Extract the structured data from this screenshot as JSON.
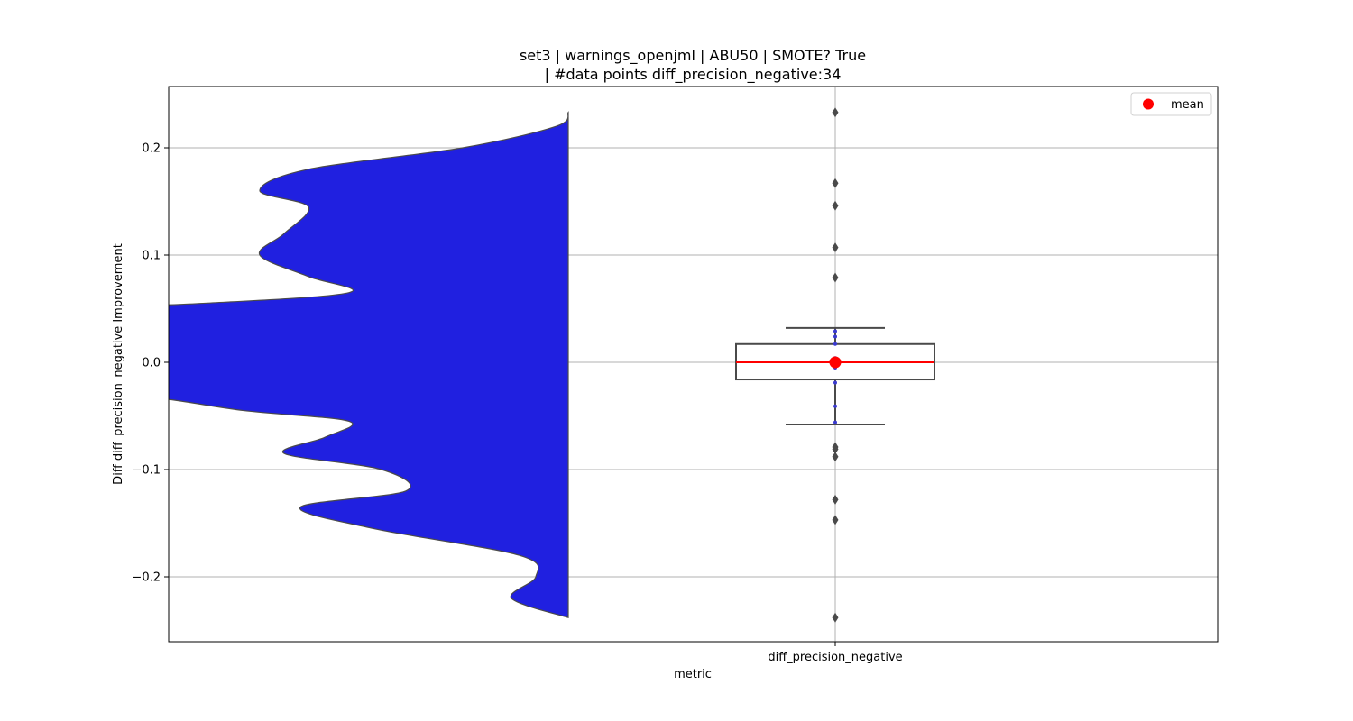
{
  "chart_data": {
    "type": "violin+box",
    "title_line1": "set3 | warnings_openjml | ABU50 | SMOTE? True",
    "title_line2": "| #data points diff_precision_negative:34",
    "xlabel": "metric",
    "ylabel": "Diff diff_precision_negative Improvement",
    "categories": [
      "diff_precision_negative"
    ],
    "ylim": [
      -0.26,
      0.26
    ],
    "yticks": [
      -0.2,
      -0.1,
      0.0,
      0.1,
      0.2
    ],
    "ytick_labels": [
      "−0.2",
      "−0.1",
      "0.0",
      "0.1",
      "0.2"
    ],
    "grid": true,
    "legend": {
      "label": "mean",
      "placement": "top-right"
    },
    "colors": {
      "violin": "#2020e0",
      "violin_edge": "#4a4a4a",
      "box_edge": "#4a4a4a",
      "median": "#ff0000",
      "mean": "#ff0000",
      "grid": "#b0b0b0"
    },
    "box": {
      "whisker_low": -0.058,
      "q1": -0.016,
      "median": 0.0,
      "q3": 0.017,
      "whisker_high": 0.032,
      "mean": 0.0
    },
    "outliers": [
      0.233,
      0.167,
      0.146,
      0.107,
      0.079,
      -0.079,
      -0.081,
      -0.088,
      -0.128,
      -0.147,
      -0.238
    ],
    "inliers": [
      0.029,
      0.024,
      0.017,
      0.004,
      0.001,
      0.0,
      0.0,
      -0.001,
      -0.003,
      -0.005,
      -0.019,
      -0.041,
      -0.056
    ],
    "violin_density": {
      "y": [
        0.233,
        0.22,
        0.2,
        0.18,
        0.16,
        0.145,
        0.12,
        0.1,
        0.08,
        0.065,
        0.055,
        0.045,
        0.03,
        0.017,
        0.0,
        -0.009,
        -0.02,
        -0.03,
        -0.045,
        -0.055,
        -0.07,
        -0.085,
        -0.1,
        -0.12,
        -0.135,
        -0.155,
        -0.18,
        -0.2,
        -0.22,
        -0.238
      ],
      "width": [
        0.0,
        0.015,
        0.13,
        0.32,
        0.38,
        0.32,
        0.35,
        0.38,
        0.32,
        0.27,
        0.45,
        0.77,
        0.93,
        1.0,
        1.0,
        1.0,
        0.83,
        0.55,
        0.4,
        0.27,
        0.3,
        0.35,
        0.23,
        0.2,
        0.33,
        0.24,
        0.06,
        0.04,
        0.07,
        0.0
      ]
    }
  }
}
